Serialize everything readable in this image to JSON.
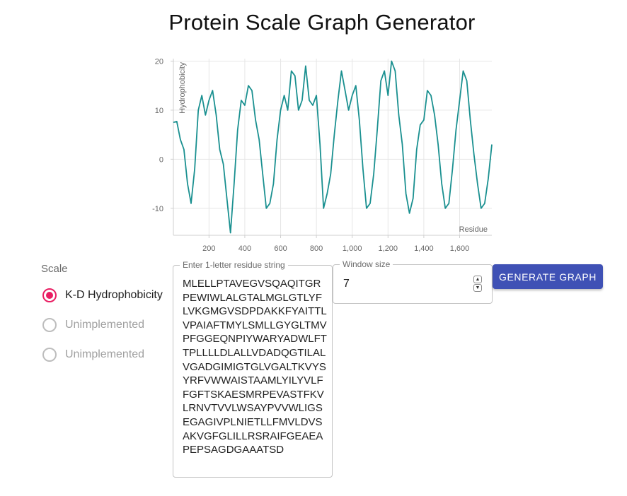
{
  "page": {
    "title": "Protein Scale Graph Generator"
  },
  "chart_data": {
    "type": "line",
    "title": "",
    "xlabel": "Residue",
    "ylabel": "Hydrophobicity",
    "xlim": [
      1,
      1780
    ],
    "ylim": [
      -15.5,
      20.5
    ],
    "x_ticks": [
      200,
      400,
      600,
      800,
      1000,
      1200,
      1400,
      1600
    ],
    "x_tick_labels": [
      "200",
      "400",
      "600",
      "800",
      "1,000",
      "1,200",
      "1,400",
      "1,600"
    ],
    "y_ticks": [
      -10,
      0,
      10,
      20
    ],
    "y_tick_labels": [
      "-10",
      "0",
      "10",
      "20"
    ],
    "grid": true,
    "line_color": "#1a9090",
    "series": [
      {
        "x": [
          1,
          20,
          40,
          60,
          80,
          100,
          120,
          140,
          160,
          180,
          200,
          220,
          240,
          260,
          280,
          300,
          320,
          340,
          360,
          380,
          400,
          420,
          440,
          460,
          480,
          500,
          520,
          540,
          560,
          580,
          600,
          620,
          640,
          660,
          680,
          700,
          720,
          740,
          760,
          780,
          800,
          820,
          840,
          860,
          880,
          900,
          920,
          940,
          960,
          980,
          1000,
          1020,
          1040,
          1060,
          1080,
          1100,
          1120,
          1140,
          1160,
          1180,
          1200,
          1220,
          1240,
          1260,
          1280,
          1300,
          1320,
          1340,
          1360,
          1380,
          1400,
          1420,
          1440,
          1460,
          1480,
          1500,
          1520,
          1540,
          1560,
          1580,
          1600,
          1620,
          1640,
          1660,
          1680,
          1700,
          1720,
          1740,
          1760,
          1780
        ],
        "values": [
          7.5,
          7.7,
          4,
          2,
          -5,
          -9,
          -2,
          10,
          13,
          9,
          12,
          14,
          9,
          2,
          -1,
          -8,
          -15,
          -5,
          6,
          12,
          11,
          15,
          14,
          8,
          4,
          -3,
          -10,
          -9,
          -5,
          4,
          10,
          13,
          10,
          18,
          17,
          10,
          12,
          19,
          12,
          11,
          13,
          3,
          -10,
          -7,
          -3,
          5,
          12,
          18,
          14,
          10,
          13,
          15,
          8,
          -2,
          -10,
          -9,
          -3,
          6,
          16,
          18,
          13,
          20,
          18,
          9,
          3,
          -7,
          -11,
          -8,
          2,
          7,
          8,
          14,
          13,
          9,
          3,
          -5,
          -10,
          -9,
          -2,
          6,
          12,
          18,
          16,
          8,
          1,
          -5,
          -10,
          -9,
          -4,
          3
        ]
      }
    ]
  },
  "scale": {
    "legend": "Scale",
    "options": [
      {
        "label": "K-D Hydrophobicity",
        "selected": true
      },
      {
        "label": "Unimplemented",
        "selected": false
      },
      {
        "label": "Unimplemented",
        "selected": false
      }
    ]
  },
  "sequence": {
    "label": "Enter 1-letter residue string",
    "value": "MLELLPTAVEGVSQAQITGRPEWIWLALGTALMGLGTLYFLVKGMGVSDPDAKKFYAITTLVPAIAFTMYLSMLLGYGLTMVPFGGEQNPIYWARYADWLFTTPLLLLDLALLVDADQGTILALVGADGIMIGTGLVGALTKVYSYRFVWWAISTAAMLYILYVLFFGFTSKAESMRPEVASTFKVLRNVTVVLWSAYPVVWLIGSEGAGIVPLNIETLLFMVLDVSAKVGFGLILLRSRAIFGEAEAPEPSAGDGAAATSD"
  },
  "window": {
    "label": "Window size",
    "value": "7"
  },
  "actions": {
    "generate_label": "Generate graph"
  }
}
